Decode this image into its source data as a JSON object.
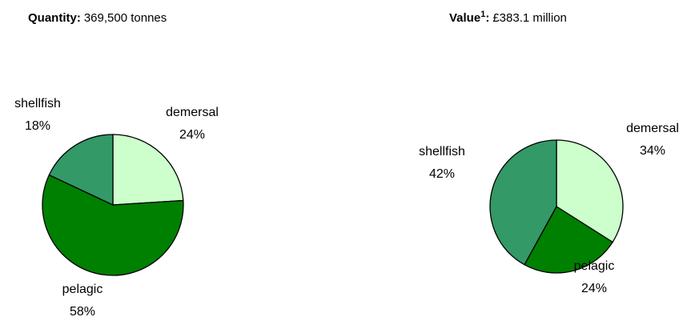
{
  "chart_data": [
    {
      "type": "pie",
      "title": [
        {
          "text": "Quantity:",
          "bold": true
        },
        {
          "text": "369,500 tonnes",
          "bold": false
        }
      ],
      "categories": [
        "demersal",
        "pelagic",
        "shellfish"
      ],
      "values": [
        24,
        58,
        18
      ],
      "value_labels": [
        "24%",
        "58%",
        "18%"
      ],
      "colors": [
        "#ccffcc",
        "#008000",
        "#339966"
      ]
    },
    {
      "type": "pie",
      "title": [
        {
          "text": "Value",
          "bold": true
        },
        {
          "text": "1",
          "bold": true,
          "superscript": true
        },
        {
          "text": ":",
          "bold": true
        },
        {
          "text": "£383.1 million",
          "bold": false
        }
      ],
      "categories": [
        "demersal",
        "pelagic",
        "shellfish"
      ],
      "values": [
        34,
        24,
        42
      ],
      "value_labels": [
        "34%",
        "24%",
        "42%"
      ],
      "colors": [
        "#ccffcc",
        "#008000",
        "#339966"
      ]
    }
  ]
}
